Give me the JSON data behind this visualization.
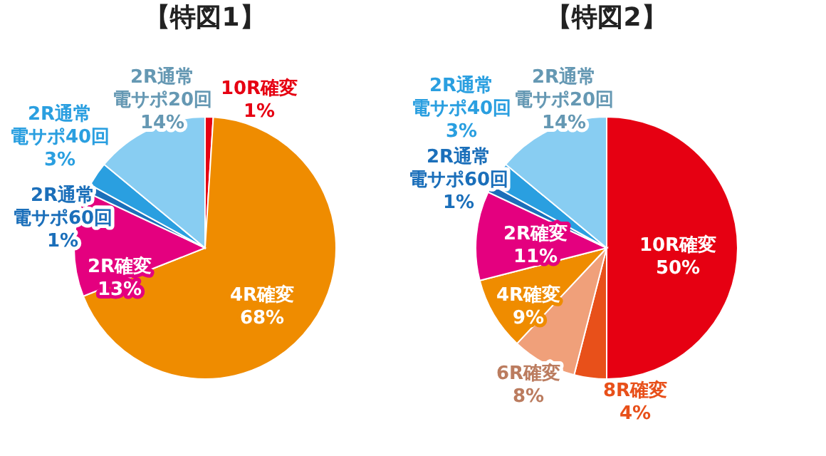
{
  "chart_data": [
    {
      "type": "pie",
      "title": "【特図1】",
      "categories": [
        "10R確変",
        "4R確変",
        "2R確変",
        "2R通常電サポ60回",
        "2R通常電サポ40回",
        "2R通常電サポ20回"
      ],
      "values": [
        1,
        68,
        13,
        1,
        3,
        14
      ],
      "value_labels": [
        "1%",
        "68%",
        "13%",
        "1%",
        "3%",
        "14%"
      ],
      "colors": [
        "#e60012",
        "#ef8c00",
        "#e4007f",
        "#1b6fba",
        "#2a9fe0",
        "#88cdf2"
      ]
    },
    {
      "type": "pie",
      "title": "【特図2】",
      "categories": [
        "10R確変",
        "8R確変",
        "6R確変",
        "4R確変",
        "2R確変",
        "2R通常電サポ60回",
        "2R通常電サポ40回",
        "2R通常電サポ20回"
      ],
      "values": [
        50,
        4,
        8,
        9,
        11,
        1,
        3,
        14
      ],
      "value_labels": [
        "50%",
        "4%",
        "8%",
        "9%",
        "11%",
        "1%",
        "3%",
        "14%"
      ],
      "colors": [
        "#e60012",
        "#e8501a",
        "#f0a07a",
        "#ef8c00",
        "#e4007f",
        "#1b6fba",
        "#2a9fe0",
        "#88cdf2"
      ]
    }
  ]
}
